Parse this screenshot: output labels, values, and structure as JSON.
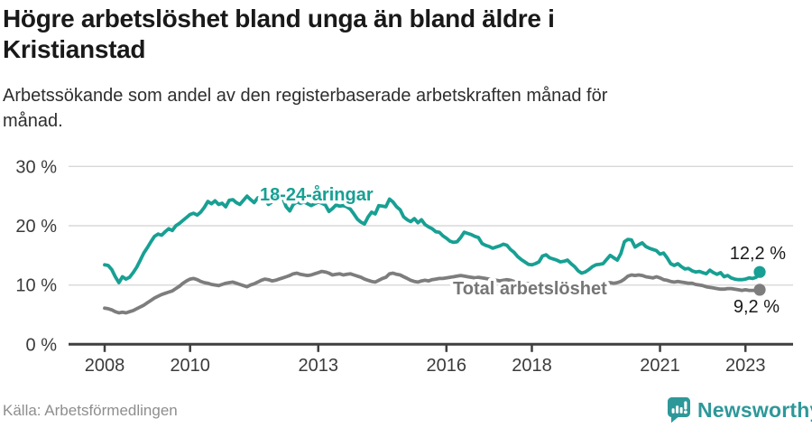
{
  "header": {
    "title": "Högre arbetslöshet bland unga än bland äldre i Kristianstad",
    "subtitle": "Arbetssökande som andel av den registerbaserade arbetskraften månad för månad."
  },
  "footer": {
    "source": "Källa: Arbetsförmedlingen",
    "brand_name": "Newsworthy",
    "brand_icon": "newsworthy-bubble-chart-icon"
  },
  "colors": {
    "youth": "#17a093",
    "total": "#7d7d7d",
    "total_label": "#767676",
    "axis": "#3f3f3f",
    "grid": "#d8d8d8",
    "tick_text": "#3b3b3b",
    "value_text": "#1a1a1a",
    "brand": "#2e9899"
  },
  "chart_data": {
    "type": "line",
    "title": "Högre arbetslöshet bland unga än bland äldre i Kristianstad",
    "subtitle": "Arbetssökande som andel av den registerbaserade arbetskraften månad för månad.",
    "source": "Källa: Arbetsförmedlingen",
    "x_unit": "month",
    "x_start_year": 2008,
    "x_end_approx": 2023.33,
    "ylim": [
      0,
      30
    ],
    "grid": "horizontal",
    "legend_position": "inline-labels",
    "yticks": [
      {
        "value": 0,
        "label": "0 %"
      },
      {
        "value": 10,
        "label": "10 %"
      },
      {
        "value": 20,
        "label": "20 %"
      },
      {
        "value": 30,
        "label": "30 %"
      }
    ],
    "xticks": [
      {
        "value": 2008,
        "label": "2008"
      },
      {
        "value": 2010,
        "label": "2010"
      },
      {
        "value": 2013,
        "label": "2013"
      },
      {
        "value": 2016,
        "label": "2016"
      },
      {
        "value": 2018,
        "label": "2018"
      },
      {
        "value": 2021,
        "label": "2021"
      },
      {
        "value": 2023,
        "label": "2023"
      }
    ],
    "series": [
      {
        "name": "18-24-åringar",
        "color_key": "youth",
        "end_label": "12,2 %",
        "end_value": 12.2,
        "values": [
          13.4,
          13.3,
          12.6,
          11.4,
          10.4,
          11.4,
          11.0,
          11.3,
          12.1,
          13.0,
          14.2,
          15.4,
          16.3,
          17.3,
          18.2,
          18.6,
          18.4,
          19.0,
          19.5,
          19.2,
          20.0,
          20.4,
          20.9,
          21.4,
          21.9,
          22.1,
          21.8,
          22.3,
          23.1,
          24.1,
          23.7,
          24.2,
          23.6,
          23.8,
          23.2,
          24.3,
          24.4,
          23.9,
          23.6,
          24.3,
          25.0,
          24.4,
          23.9,
          24.7,
          24.2,
          24.6,
          23.6,
          24.0,
          24.8,
          25.3,
          24.7,
          23.2,
          22.5,
          23.6,
          24.0,
          23.8,
          24.0,
          23.7,
          23.4,
          23.7,
          24.0,
          23.8,
          23.5,
          22.4,
          22.9,
          23.5,
          23.3,
          23.4,
          23.2,
          22.8,
          22.0,
          21.1,
          20.6,
          20.3,
          21.5,
          22.3,
          22.0,
          23.4,
          23.3,
          23.2,
          24.5,
          24.0,
          23.2,
          22.7,
          21.5,
          21.0,
          20.7,
          21.2,
          20.5,
          21.0,
          20.2,
          19.8,
          19.5,
          19.0,
          18.9,
          18.3,
          17.9,
          17.4,
          17.2,
          17.3,
          18.0,
          18.9,
          18.7,
          18.5,
          18.2,
          18.0,
          17.0,
          16.7,
          16.5,
          16.2,
          16.4,
          16.6,
          16.9,
          16.7,
          16.0,
          15.5,
          14.8,
          14.3,
          13.9,
          13.5,
          13.4,
          13.6,
          13.9,
          14.9,
          15.1,
          14.6,
          14.4,
          14.2,
          13.9,
          14.0,
          14.2,
          13.6,
          13.1,
          12.4,
          12.0,
          12.2,
          12.6,
          13.1,
          13.4,
          13.5,
          13.6,
          14.3,
          15.0,
          14.6,
          14.2,
          15.3,
          17.3,
          17.7,
          17.6,
          16.4,
          16.8,
          17.1,
          16.5,
          16.2,
          16.0,
          15.8,
          15.2,
          15.4,
          14.6,
          13.6,
          13.3,
          13.6,
          13.1,
          12.7,
          12.8,
          12.4,
          12.2,
          12.3,
          12.1,
          11.9,
          12.5,
          12.1,
          11.8,
          12.1,
          11.4,
          11.6,
          11.2,
          11.0,
          10.9,
          10.9,
          11.0,
          11.2,
          11.1,
          11.3,
          12.2
        ]
      },
      {
        "name": "Total arbetslöshet",
        "color_key": "total",
        "end_label": "9,2 %",
        "end_value": 9.2,
        "values": [
          6.1,
          6.0,
          5.8,
          5.5,
          5.3,
          5.4,
          5.3,
          5.5,
          5.7,
          6.0,
          6.3,
          6.6,
          7.0,
          7.4,
          7.8,
          8.1,
          8.4,
          8.6,
          8.8,
          9.0,
          9.4,
          9.8,
          10.3,
          10.7,
          11.0,
          11.1,
          10.9,
          10.6,
          10.4,
          10.3,
          10.1,
          10.0,
          9.9,
          10.1,
          10.3,
          10.4,
          10.5,
          10.3,
          10.1,
          9.9,
          9.7,
          10.0,
          10.2,
          10.5,
          10.8,
          11.0,
          10.9,
          10.7,
          10.8,
          11.0,
          11.2,
          11.4,
          11.6,
          11.9,
          12.0,
          11.8,
          11.7,
          11.6,
          11.7,
          11.9,
          12.1,
          12.3,
          12.2,
          12.0,
          11.7,
          11.8,
          11.9,
          11.7,
          11.8,
          11.9,
          11.7,
          11.5,
          11.3,
          11.0,
          10.8,
          10.6,
          10.5,
          10.8,
          11.1,
          11.3,
          11.9,
          12.0,
          11.8,
          11.7,
          11.4,
          11.1,
          10.8,
          10.6,
          10.5,
          10.7,
          10.8,
          10.7,
          10.9,
          11.0,
          11.1,
          11.1,
          11.2,
          11.3,
          11.4,
          11.5,
          11.6,
          11.5,
          11.4,
          11.3,
          11.2,
          11.3,
          11.2,
          11.1,
          11.0,
          10.9,
          10.8,
          10.7,
          10.8,
          10.9,
          10.8,
          10.6,
          10.5,
          10.4,
          10.3,
          10.2,
          10.3,
          10.2,
          10.1,
          10.0,
          10.1,
          10.2,
          10.3,
          10.2,
          10.0,
          9.9,
          9.8,
          9.9,
          10.0,
          9.9,
          9.8,
          9.7,
          9.8,
          9.9,
          10.0,
          10.1,
          10.2,
          10.3,
          10.4,
          10.3,
          10.4,
          10.6,
          11.0,
          11.5,
          11.7,
          11.6,
          11.7,
          11.6,
          11.4,
          11.3,
          11.2,
          11.4,
          11.2,
          10.9,
          10.8,
          10.6,
          10.5,
          10.6,
          10.5,
          10.4,
          10.3,
          10.3,
          10.1,
          10.0,
          9.9,
          9.7,
          9.6,
          9.5,
          9.4,
          9.3,
          9.3,
          9.4,
          9.4,
          9.3,
          9.2,
          9.1,
          9.2,
          9.1,
          9.1,
          9.1,
          9.2
        ]
      }
    ]
  }
}
